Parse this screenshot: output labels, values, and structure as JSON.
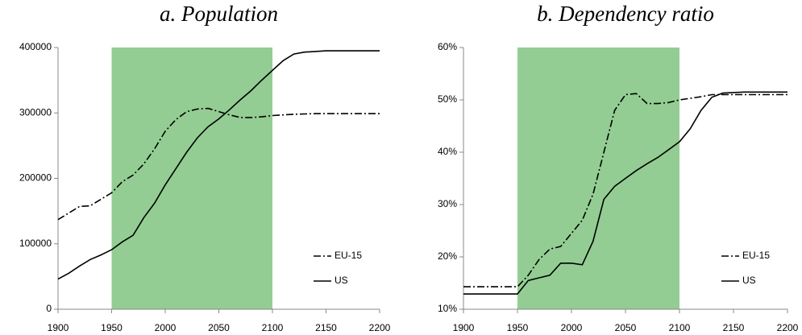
{
  "chart_data": [
    {
      "type": "line",
      "title": "a. Population",
      "x": [
        1900,
        1910,
        1920,
        1930,
        1940,
        1950,
        1960,
        1970,
        1980,
        1990,
        2000,
        2010,
        2020,
        2030,
        2040,
        2050,
        2060,
        2070,
        2080,
        2090,
        2100,
        2110,
        2120,
        2130,
        2140,
        2150,
        2160,
        2170,
        2180,
        2190,
        2200
      ],
      "series": [
        {
          "name": "EU-15",
          "color": "#000000",
          "dash": "dashdot",
          "values": [
            137000,
            147000,
            157000,
            158000,
            168000,
            178000,
            195000,
            205000,
            222000,
            245000,
            272000,
            290000,
            302000,
            306000,
            307000,
            302000,
            297000,
            293000,
            293000,
            294000,
            296000,
            297000,
            298000,
            298500,
            299000,
            299000,
            299000,
            299000,
            299000,
            299000,
            299000
          ]
        },
        {
          "name": "US",
          "color": "#000000",
          "dash": "solid",
          "values": [
            46000,
            55000,
            66000,
            76000,
            83000,
            91000,
            103000,
            113000,
            140000,
            162000,
            190000,
            215000,
            240000,
            262000,
            279000,
            291000,
            305000,
            320000,
            334000,
            350000,
            365000,
            380000,
            390000,
            393000,
            394000,
            395000,
            395000,
            395000,
            395000,
            395000,
            395000
          ]
        }
      ],
      "highlight_range": [
        1950,
        2100
      ],
      "highlight_color": "#93cd93",
      "xlim": [
        1900,
        2200
      ],
      "xticks": [
        1900,
        1950,
        2000,
        2050,
        2100,
        2150,
        2200
      ],
      "ylim": [
        0,
        400000
      ],
      "yticks": [
        0,
        100000,
        200000,
        300000,
        400000
      ],
      "legend": "lower right"
    },
    {
      "type": "line",
      "title": "b. Dependency ratio",
      "x": [
        1900,
        1910,
        1920,
        1930,
        1940,
        1950,
        1960,
        1970,
        1980,
        1990,
        2000,
        2010,
        2020,
        2030,
        2040,
        2050,
        2060,
        2070,
        2080,
        2090,
        2100,
        2110,
        2120,
        2130,
        2140,
        2150,
        2160,
        2170,
        2180,
        2190,
        2200
      ],
      "series": [
        {
          "name": "EU-15",
          "color": "#000000",
          "dash": "dashdot",
          "values": [
            14.3,
            14.3,
            14.3,
            14.3,
            14.3,
            14.3,
            16.5,
            19.5,
            21.5,
            22,
            24.5,
            27,
            32,
            40,
            48,
            51,
            51.2,
            49.3,
            49.3,
            49.5,
            50,
            50.3,
            50.6,
            51,
            51,
            51,
            51,
            51,
            51,
            51,
            51
          ]
        },
        {
          "name": "US",
          "color": "#000000",
          "dash": "solid",
          "values": [
            12.9,
            12.9,
            12.9,
            12.9,
            12.9,
            12.9,
            15.5,
            16,
            16.5,
            18.8,
            18.8,
            18.5,
            23,
            31,
            33.5,
            35,
            36.5,
            37.8,
            39,
            40.5,
            42,
            44.5,
            48,
            50.5,
            51.3,
            51.4,
            51.5,
            51.5,
            51.5,
            51.5,
            51.5
          ]
        }
      ],
      "highlight_range": [
        1950,
        2100
      ],
      "highlight_color": "#93cd93",
      "xlim": [
        1900,
        2200
      ],
      "xticks": [
        1900,
        1950,
        2000,
        2050,
        2100,
        2150,
        2200
      ],
      "ylim": [
        10,
        60
      ],
      "yticks": [
        {
          "value": 10,
          "label": "10%"
        },
        {
          "value": 20,
          "label": "20%"
        },
        {
          "value": 30,
          "label": "30%"
        },
        {
          "value": 40,
          "label": "40%"
        },
        {
          "value": 50,
          "label": "50%"
        },
        {
          "value": 60,
          "label": "60%"
        }
      ],
      "legend": "lower right"
    }
  ]
}
